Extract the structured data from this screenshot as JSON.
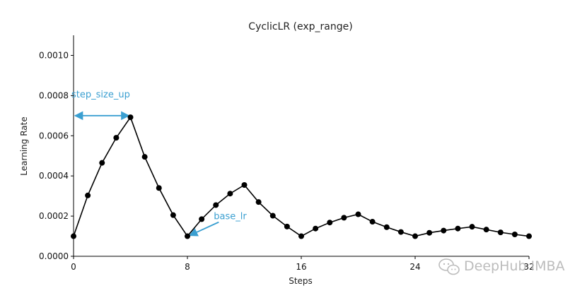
{
  "chart_data": {
    "type": "line",
    "title": "CyclicLR (exp_range)",
    "xlabel": "Steps",
    "ylabel": "Learning Rate",
    "xlim": [
      0,
      32
    ],
    "ylim": [
      0,
      0.0011
    ],
    "grid": false,
    "x_ticks": [
      0,
      8,
      16,
      24,
      32
    ],
    "x_tick_labels": [
      "0",
      "8",
      "16",
      "24",
      "32"
    ],
    "y_ticks": [
      0,
      0.0002,
      0.0004,
      0.0006,
      0.0008,
      0.001
    ],
    "y_tick_labels": [
      "0.0000",
      "0.0002",
      "0.0004",
      "0.0006",
      "0.0008",
      "0.0010"
    ],
    "series": [
      {
        "color": "#000000",
        "marker": "circle",
        "x": [
          0,
          1,
          2,
          3,
          4,
          5,
          6,
          7,
          8,
          9,
          10,
          11,
          12,
          13,
          14,
          15,
          16,
          17,
          18,
          19,
          20,
          21,
          22,
          23,
          24,
          25,
          26,
          27,
          28,
          29,
          30,
          31,
          32
        ],
        "y": [
          0.0001,
          0.000303,
          0.000465,
          0.00059,
          0.000692,
          0.000495,
          0.00034,
          0.000205,
          0.0001,
          0.000185,
          0.000255,
          0.000312,
          0.000355,
          0.00027,
          0.000202,
          0.000148,
          0.0001,
          0.000138,
          0.000168,
          0.000192,
          0.000209,
          0.000172,
          0.000145,
          0.000121,
          0.0001,
          0.000117,
          0.000128,
          0.000138,
          0.000147,
          0.000133,
          0.000119,
          0.000109,
          0.0001
        ]
      }
    ],
    "annotations": [
      {
        "text": "step_size_up",
        "arrow": "double",
        "x_from": 0,
        "x_to": 4,
        "y": 0.0007,
        "text_x": 0,
        "text_y": 0.00079,
        "color": "#3a9fd1"
      },
      {
        "text": "base_lr",
        "arrow": "single",
        "x_from": 10.2,
        "y_from": 0.00017,
        "x_to": 8,
        "y_to": 0.0001,
        "text_x": 10,
        "text_y": 0.000185,
        "color": "#3a9fd1"
      }
    ]
  },
  "watermark": {
    "text": "DeepHub IMBA",
    "icon": "wechat-icon",
    "color": "#b5b5b5"
  }
}
